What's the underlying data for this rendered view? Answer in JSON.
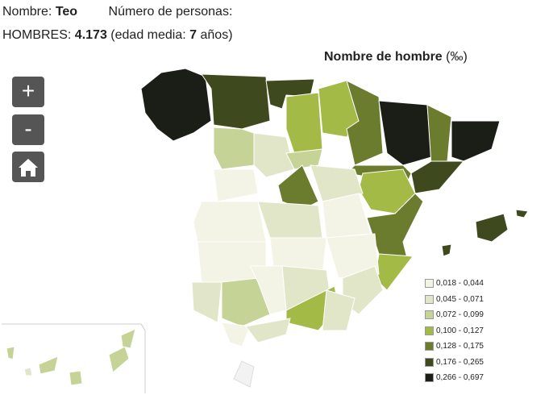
{
  "header": {
    "name_label": "Nombre:",
    "name": "Teo",
    "count_label": "Número de personas:",
    "men_label": "HOMBRES:",
    "men_count": "4.173",
    "age_prefix": "(edad media:",
    "age": "7",
    "age_suffix": "años)"
  },
  "map": {
    "title": "Nombre de hombre",
    "unit": "(‰)",
    "controls": [
      "+",
      "-"
    ],
    "legend": [
      {
        "label": "0,018 - 0,044",
        "color": "#f3f3e6"
      },
      {
        "label": "0,045 - 0,071",
        "color": "#e2e6c8"
      },
      {
        "label": "0,072 - 0,099",
        "color": "#c6d396"
      },
      {
        "label": "0,100 - 0,127",
        "color": "#a3ba46"
      },
      {
        "label": "0,128 - 0,175",
        "color": "#6b7c2e"
      },
      {
        "label": "0,176 - 0,265",
        "color": "#3e4a1e"
      },
      {
        "label": "0,266 - 0,697",
        "color": "#1a1e16"
      }
    ]
  }
}
